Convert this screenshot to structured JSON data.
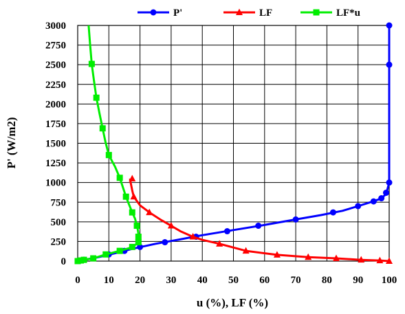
{
  "chart_data": {
    "type": "line",
    "xlabel": "u (%), LF (%)",
    "ylabel": "P' (W/m2)",
    "xlim": [
      0,
      100
    ],
    "ylim": [
      0,
      3000
    ],
    "xticks": [
      0,
      10,
      20,
      30,
      40,
      50,
      60,
      70,
      80,
      90,
      100
    ],
    "yticks": [
      0,
      250,
      500,
      750,
      1000,
      1250,
      1500,
      1750,
      2000,
      2250,
      2500,
      2750,
      3000
    ],
    "grid": true,
    "legend_position": "top",
    "series": [
      {
        "name": "P'",
        "color": "#0000ff",
        "marker": "circle",
        "markers": [
          [
            0,
            0
          ],
          [
            1,
            8
          ],
          [
            2,
            16
          ],
          [
            5,
            35
          ],
          [
            10,
            85
          ],
          [
            15,
            130
          ],
          [
            20,
            180
          ],
          [
            28,
            240
          ],
          [
            38,
            310
          ],
          [
            48,
            380
          ],
          [
            58,
            450
          ],
          [
            70,
            530
          ],
          [
            82,
            620
          ],
          [
            90,
            700
          ],
          [
            95,
            760
          ],
          [
            97.5,
            800
          ],
          [
            99,
            870
          ],
          [
            100,
            1000
          ],
          [
            100,
            2500
          ],
          [
            100,
            3000
          ]
        ],
        "curve": [
          [
            0,
            0
          ],
          [
            2,
            16
          ],
          [
            6,
            45
          ],
          [
            12,
            100
          ],
          [
            18,
            160
          ],
          [
            25,
            220
          ],
          [
            32,
            270
          ],
          [
            40,
            330
          ],
          [
            50,
            395
          ],
          [
            60,
            460
          ],
          [
            70,
            530
          ],
          [
            78,
            585
          ],
          [
            85,
            640
          ],
          [
            90,
            700
          ],
          [
            94,
            750
          ],
          [
            97,
            790
          ],
          [
            99,
            850
          ],
          [
            100,
            1000
          ],
          [
            100,
            3000
          ]
        ]
      },
      {
        "name": "LF",
        "color": "#ff0000",
        "marker": "triangle",
        "markers": [
          [
            100,
            0
          ],
          [
            97,
            8
          ],
          [
            91,
            16
          ],
          [
            83,
            35
          ],
          [
            74,
            50
          ],
          [
            64,
            80
          ],
          [
            54,
            130
          ],
          [
            45.5,
            220
          ],
          [
            37,
            310
          ],
          [
            30,
            450
          ],
          [
            23,
            620
          ],
          [
            18,
            820
          ],
          [
            17.5,
            1050
          ]
        ],
        "curve": [
          [
            100,
            0
          ],
          [
            97,
            8
          ],
          [
            91,
            16
          ],
          [
            83,
            35
          ],
          [
            74,
            50
          ],
          [
            64,
            80
          ],
          [
            54,
            130
          ],
          [
            45.5,
            220
          ],
          [
            40,
            270
          ],
          [
            37,
            310
          ],
          [
            33,
            380
          ],
          [
            30,
            450
          ],
          [
            26.5,
            530
          ],
          [
            23,
            620
          ],
          [
            20,
            710
          ],
          [
            18,
            820
          ],
          [
            17.5,
            900
          ],
          [
            17,
            1000
          ],
          [
            16.8,
            1050
          ]
        ]
      },
      {
        "name": "LF*u",
        "color": "#00ee00",
        "marker": "square",
        "markers": [
          [
            0,
            0
          ],
          [
            1,
            8
          ],
          [
            2,
            16
          ],
          [
            5,
            35
          ],
          [
            9,
            85
          ],
          [
            13.5,
            130
          ],
          [
            17.5,
            180
          ],
          [
            19.5,
            240
          ],
          [
            19.5,
            310
          ],
          [
            19,
            450
          ],
          [
            17.5,
            620
          ],
          [
            15.5,
            820
          ],
          [
            13.5,
            1060
          ],
          [
            10,
            1350
          ],
          [
            8,
            1690
          ],
          [
            6,
            2080
          ],
          [
            4.5,
            2510
          ]
        ],
        "curve": [
          [
            0,
            0
          ],
          [
            1,
            8
          ],
          [
            2,
            16
          ],
          [
            5,
            35
          ],
          [
            9,
            85
          ],
          [
            13.5,
            130
          ],
          [
            17,
            170
          ],
          [
            19,
            220
          ],
          [
            19.6,
            280
          ],
          [
            19.5,
            350
          ],
          [
            19.2,
            420
          ],
          [
            19,
            450
          ],
          [
            18.4,
            540
          ],
          [
            17.5,
            620
          ],
          [
            16.5,
            720
          ],
          [
            15.5,
            820
          ],
          [
            14.5,
            940
          ],
          [
            13.5,
            1060
          ],
          [
            12,
            1200
          ],
          [
            10,
            1350
          ],
          [
            8.9,
            1520
          ],
          [
            8,
            1690
          ],
          [
            7,
            1880
          ],
          [
            6,
            2080
          ],
          [
            5.2,
            2300
          ],
          [
            4.5,
            2510
          ],
          [
            4,
            2750
          ],
          [
            3.5,
            3000
          ]
        ]
      }
    ]
  }
}
